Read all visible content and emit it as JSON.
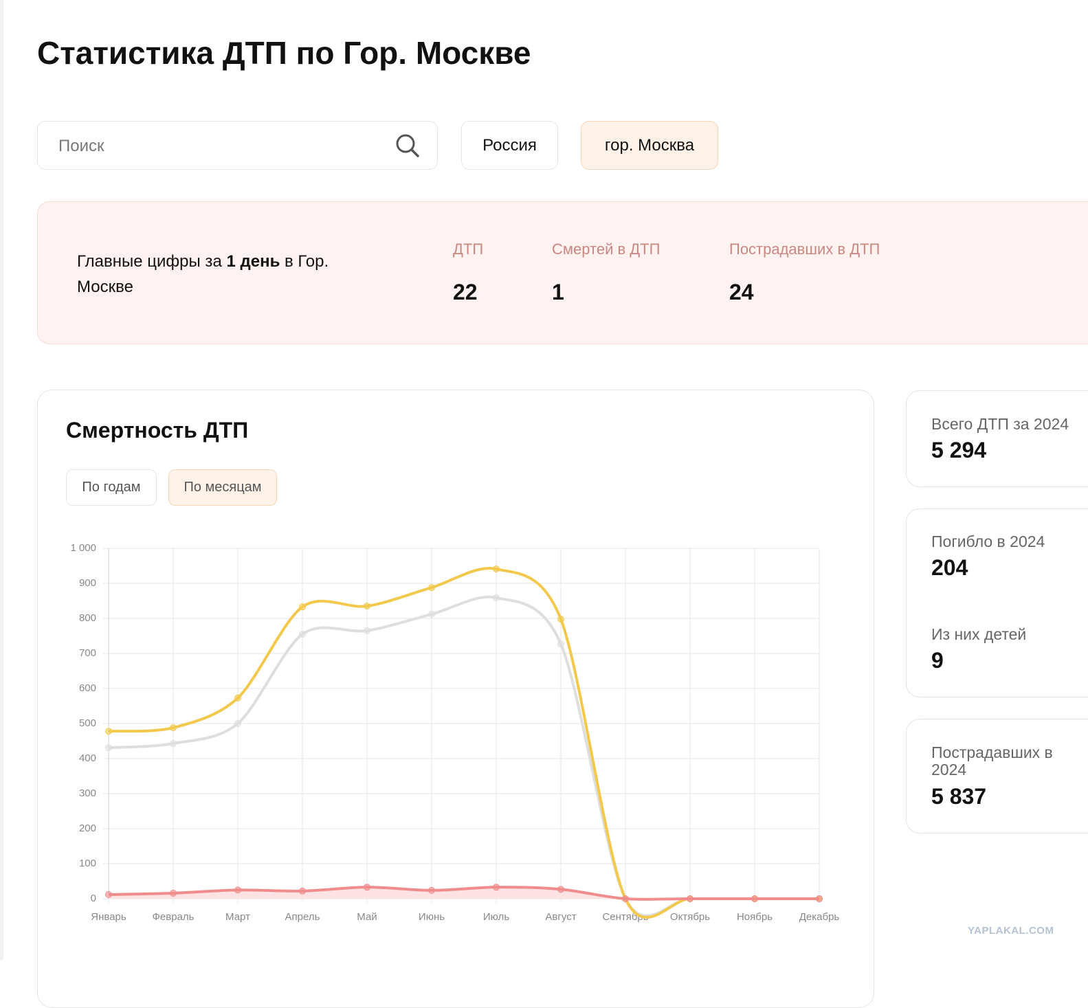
{
  "header": {
    "title": "Статистика ДТП по Гор. Москве"
  },
  "search": {
    "placeholder": "Поиск"
  },
  "regions": [
    "Россия",
    "гор. Москва"
  ],
  "summary": {
    "caption_start": "Главные цифры за",
    "caption_bold": "1 день",
    "caption_end": "в Гор. Москве",
    "stats": [
      {
        "label": "ДТП",
        "value": "22"
      },
      {
        "label": "Смертей в ДТП",
        "value": "1"
      },
      {
        "label": "Пострадавших в ДТП",
        "value": "24"
      }
    ]
  },
  "chart_tabs": [
    "По годам",
    "По месяцам"
  ],
  "chart_data": {
    "type": "line",
    "title": "Смертность ДТП",
    "categories": [
      "Январь",
      "Февраль",
      "Март",
      "Апрель",
      "Май",
      "Июнь",
      "Июль",
      "Август",
      "Сентябрь",
      "Октябрь",
      "Ноябрь",
      "Декабрь"
    ],
    "series": [
      {
        "color": "#dedede",
        "values": [
          431,
          443,
          500,
          755,
          765,
          812,
          859,
          727,
          0,
          0,
          0,
          0
        ]
      },
      {
        "color": "#f2c94c",
        "values": [
          478,
          488,
          573,
          833,
          835,
          888,
          941,
          798,
          0,
          0,
          0,
          0
        ]
      },
      {
        "color": "#f08c8c",
        "fill": "#fde3e3",
        "values": [
          12,
          16,
          25,
          22,
          33,
          24,
          33,
          27,
          0,
          0,
          0,
          0
        ]
      }
    ],
    "ylim": [
      0,
      1000
    ],
    "yticks": [
      0,
      100,
      200,
      300,
      400,
      500,
      600,
      700,
      800,
      900,
      {
        "value": 1000,
        "label": "1 000"
      }
    ],
    "grid": true
  },
  "side": [
    {
      "label": "Всего ДТП за 2024",
      "value": "5 294"
    },
    {
      "label": "Погибло в 2024",
      "value": "204",
      "sub_label": "Из них детей",
      "sub_value": "9"
    },
    {
      "label": "Пострадавших в 2024",
      "value": "5 837"
    }
  ],
  "watermark": "YAPLAKAL.COM"
}
